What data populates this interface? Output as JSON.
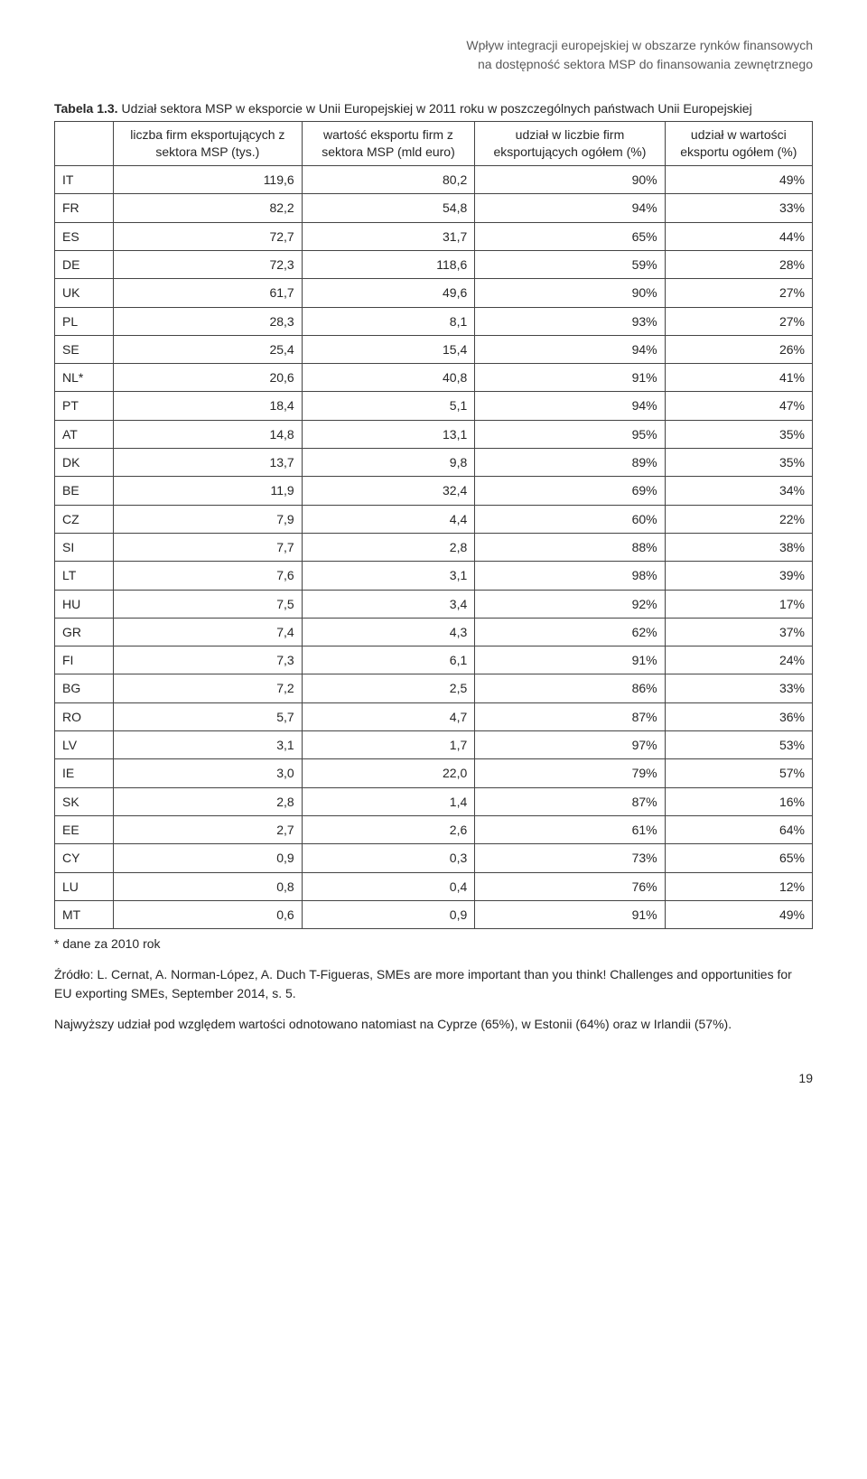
{
  "running_header": {
    "line1": "Wpływ integracji europejskiej w obszarze rynków finansowych",
    "line2": "na dostępność sektora MSP do finansowania zewnętrznego"
  },
  "caption": {
    "label": "Tabela 1.3.",
    "text": "Udział sektora MSP w eksporcie w Unii Europejskiej w 2011 roku w poszczególnych państwach Unii Europejskiej"
  },
  "table": {
    "columns": [
      "",
      "liczba firm eksportujących z sektora MSP (tys.)",
      "wartość eksportu firm z sektora MSP (mld euro)",
      "udział w liczbie firm eksportujących ogółem (%)",
      "udział w wartości eksportu ogółem (%)"
    ],
    "col_widths": [
      "48px",
      "auto",
      "auto",
      "auto",
      "auto"
    ],
    "header_bg": "#ffffff",
    "border_color": "#444444",
    "rows": [
      [
        "IT",
        "119,6",
        "80,2",
        "90%",
        "49%"
      ],
      [
        "FR",
        "82,2",
        "54,8",
        "94%",
        "33%"
      ],
      [
        "ES",
        "72,7",
        "31,7",
        "65%",
        "44%"
      ],
      [
        "DE",
        "72,3",
        "118,6",
        "59%",
        "28%"
      ],
      [
        "UK",
        "61,7",
        "49,6",
        "90%",
        "27%"
      ],
      [
        "PL",
        "28,3",
        "8,1",
        "93%",
        "27%"
      ],
      [
        "SE",
        "25,4",
        "15,4",
        "94%",
        "26%"
      ],
      [
        "NL*",
        "20,6",
        "40,8",
        "91%",
        "41%"
      ],
      [
        "PT",
        "18,4",
        "5,1",
        "94%",
        "47%"
      ],
      [
        "AT",
        "14,8",
        "13,1",
        "95%",
        "35%"
      ],
      [
        "DK",
        "13,7",
        "9,8",
        "89%",
        "35%"
      ],
      [
        "BE",
        "11,9",
        "32,4",
        "69%",
        "34%"
      ],
      [
        "CZ",
        "7,9",
        "4,4",
        "60%",
        "22%"
      ],
      [
        "SI",
        "7,7",
        "2,8",
        "88%",
        "38%"
      ],
      [
        "LT",
        "7,6",
        "3,1",
        "98%",
        "39%"
      ],
      [
        "HU",
        "7,5",
        "3,4",
        "92%",
        "17%"
      ],
      [
        "GR",
        "7,4",
        "4,3",
        "62%",
        "37%"
      ],
      [
        "FI",
        "7,3",
        "6,1",
        "91%",
        "24%"
      ],
      [
        "BG",
        "7,2",
        "2,5",
        "86%",
        "33%"
      ],
      [
        "RO",
        "5,7",
        "4,7",
        "87%",
        "36%"
      ],
      [
        "LV",
        "3,1",
        "1,7",
        "97%",
        "53%"
      ],
      [
        "IE",
        "3,0",
        "22,0",
        "79%",
        "57%"
      ],
      [
        "SK",
        "2,8",
        "1,4",
        "87%",
        "16%"
      ],
      [
        "EE",
        "2,7",
        "2,6",
        "61%",
        "64%"
      ],
      [
        "CY",
        "0,9",
        "0,3",
        "73%",
        "65%"
      ],
      [
        "LU",
        "0,8",
        "0,4",
        "76%",
        "12%"
      ],
      [
        "MT",
        "0,6",
        "0,9",
        "91%",
        "49%"
      ]
    ]
  },
  "footnote": "* dane za 2010 rok",
  "source": "Źródło: L. Cernat, A. Norman-López, A. Duch T-Figueras, SMEs are more important than you think! Challenges and opportunities for EU exporting SMEs, September 2014, s. 5.",
  "body_text": "Najwyższy udział pod względem wartości odnotowano natomiast na Cyprze (65%), w Estonii (64%) oraz w Irlandii (57%).",
  "page_number": "19"
}
